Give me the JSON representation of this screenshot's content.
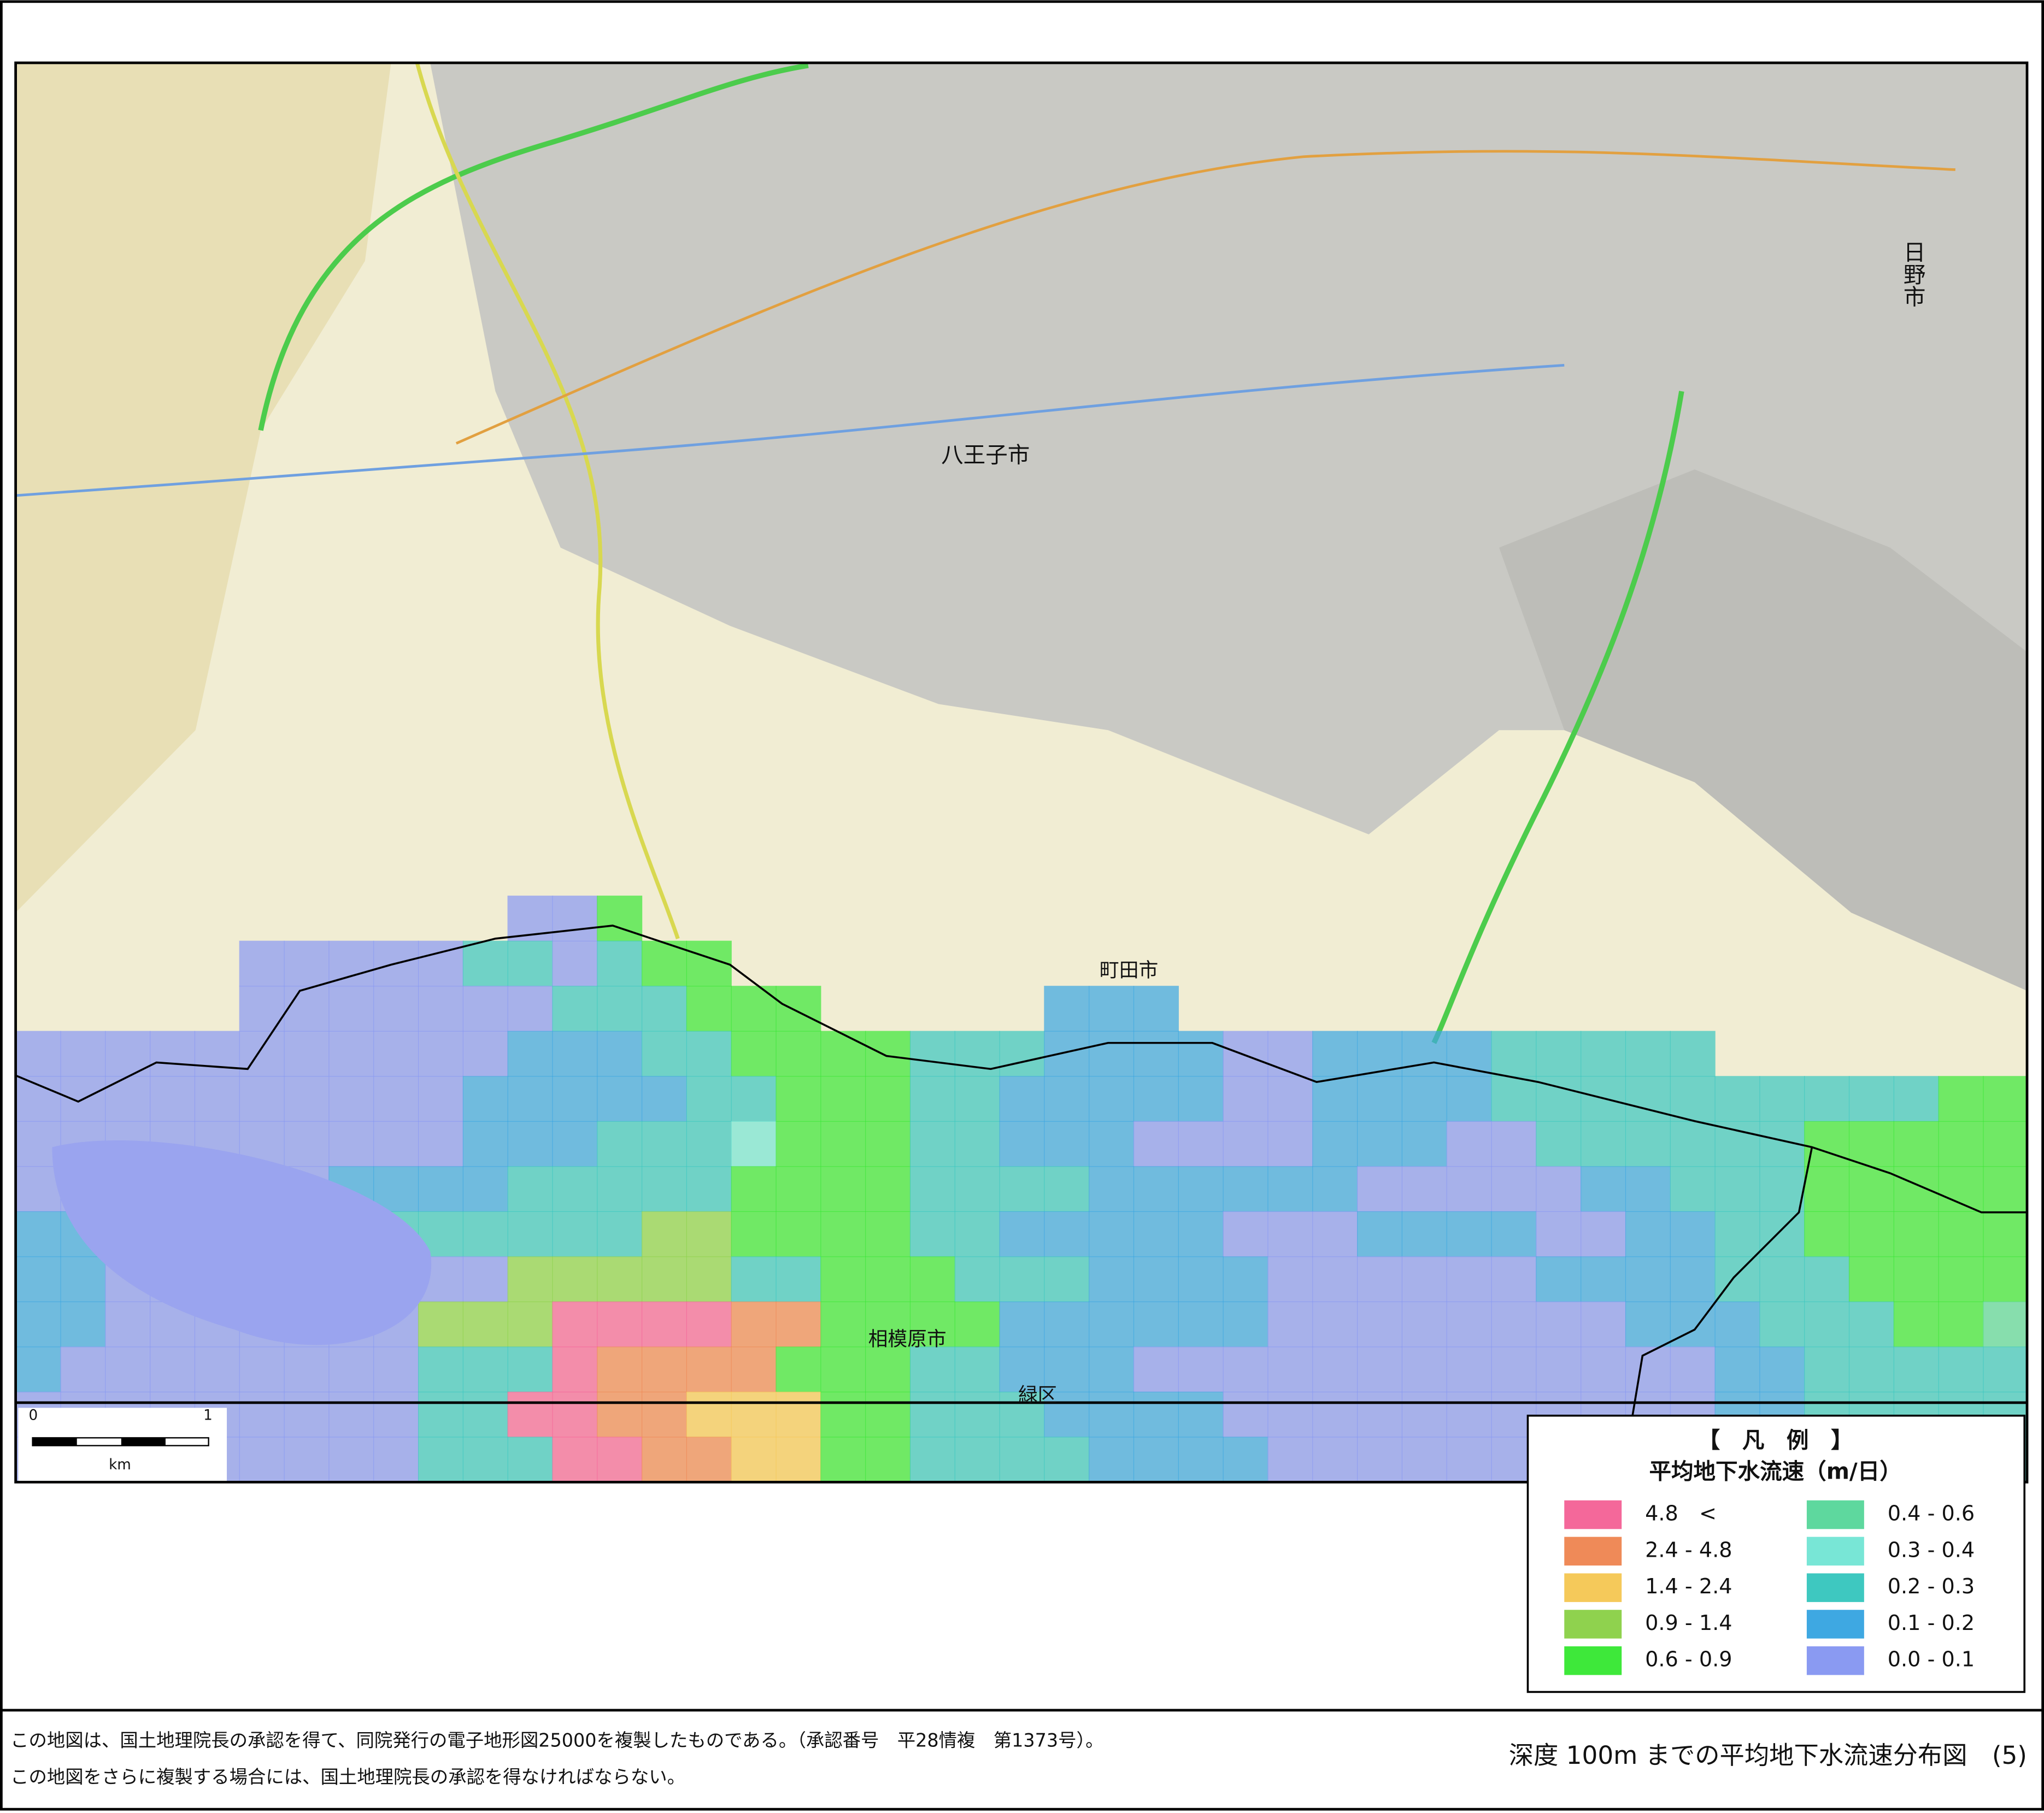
{
  "map": {
    "place_labels": [
      "八王子市",
      "町田市",
      "相模原市",
      "日野市",
      "緑区"
    ],
    "scale": {
      "start": "0",
      "end": "1",
      "unit": "km"
    },
    "legend": {
      "title": "【　凡　例　】",
      "subtitle": "平均地下水流速（m/日）",
      "items": [
        {
          "label": "4.8　<",
          "color": "#f4689a"
        },
        {
          "label": "2.4 - 4.8",
          "color": "#ef8a58"
        },
        {
          "label": "1.4 - 2.4",
          "color": "#f5c95a"
        },
        {
          "label": "0.9 - 1.4",
          "color": "#8fd24e"
        },
        {
          "label": "0.6 - 0.9",
          "color": "#3ee83a"
        },
        {
          "label": "0.4 - 0.6",
          "color": "#5ed89e"
        },
        {
          "label": "0.3 - 0.4",
          "color": "#78e6d6"
        },
        {
          "label": "0.2 - 0.3",
          "color": "#3ec8c0"
        },
        {
          "label": "0.1 - 0.2",
          "color": "#3ea8e2"
        },
        {
          "label": "0.0 - 0.1",
          "color": "#8a9af2"
        }
      ]
    }
  },
  "footer": {
    "notes": [
      "この地図は、国土地理院長の承認を得て、同院発行の電子地形図25000を複製したものである。（承認番号　平28情複　第1373号）。",
      "この地図をさらに複製する場合には、国土地理院長の承認を得なければならない。"
    ],
    "caption": "深度 100m までの平均地下水流速分布図　(5)"
  }
}
